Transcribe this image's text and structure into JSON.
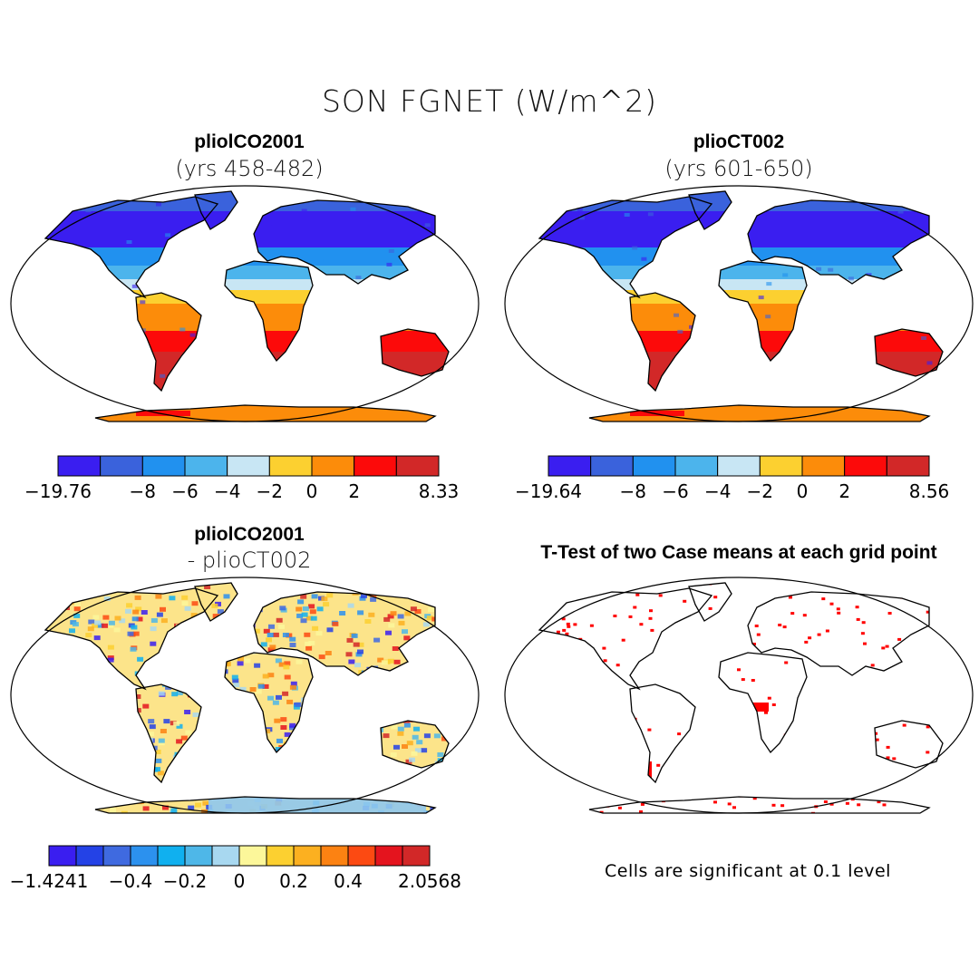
{
  "title": "SON FGNET (W/m^2)",
  "panels": [
    {
      "id": "p1",
      "title": "pliolCO2001",
      "subtitle": "(yrs 458-482)",
      "mode": "abs"
    },
    {
      "id": "p2",
      "title": "plioCT002",
      "subtitle": "(yrs 601-650)",
      "mode": "abs"
    },
    {
      "id": "p3",
      "title": "pliolCO2001",
      "subtitle": "- plioCT002",
      "mode": "diff"
    },
    {
      "id": "p4",
      "title": "T-Test of two Case means at each grid point",
      "subtitle": "",
      "mode": "ttest"
    }
  ],
  "colorbars": [
    {
      "id": "cb1",
      "colors": [
        "#3a1ef0",
        "#3a62dc",
        "#2191ef",
        "#4cb4ec",
        "#c8e6f4",
        "#fcd030",
        "#fc8c0a",
        "#fc0a0a",
        "#d22828"
      ],
      "labels": [
        "-19.76",
        "-8",
        "-6",
        "-4",
        "-2",
        "0",
        "2",
        "8.33"
      ],
      "label_slots": [
        0,
        2,
        3,
        4,
        5,
        6,
        7,
        9
      ]
    },
    {
      "id": "cb2",
      "colors": [
        "#3a1ef0",
        "#3a62dc",
        "#2191ef",
        "#4cb4ec",
        "#c8e6f4",
        "#fcd030",
        "#fc8c0a",
        "#fc0a0a",
        "#d22828"
      ],
      "labels": [
        "-19.64",
        "-8",
        "-6",
        "-4",
        "-2",
        "0",
        "2",
        "8.56"
      ],
      "label_slots": [
        0,
        2,
        3,
        4,
        5,
        6,
        7,
        9
      ]
    },
    {
      "id": "cb3",
      "colors": [
        "#3a1ef0",
        "#2442e6",
        "#3f6ae0",
        "#2c91ee",
        "#10b0ef",
        "#4eb7e8",
        "#a8d8f0",
        "#fcf79a",
        "#fcd030",
        "#fcb020",
        "#fc8212",
        "#fc4a12",
        "#e4141e",
        "#d22828"
      ],
      "labels": [
        "-1.4241",
        "-0.4",
        "-0.2",
        "0",
        "0.2",
        "0.4",
        "2.0568"
      ],
      "label_slots": [
        0,
        3,
        5,
        7,
        9,
        11,
        14
      ]
    }
  ],
  "footnote": "Cells are significant at 0.1 level",
  "colors": {
    "land_cold": "#3a62dc",
    "land_warm": "#fc8c0a",
    "significance": "#ff0000",
    "outline": "#000000"
  }
}
